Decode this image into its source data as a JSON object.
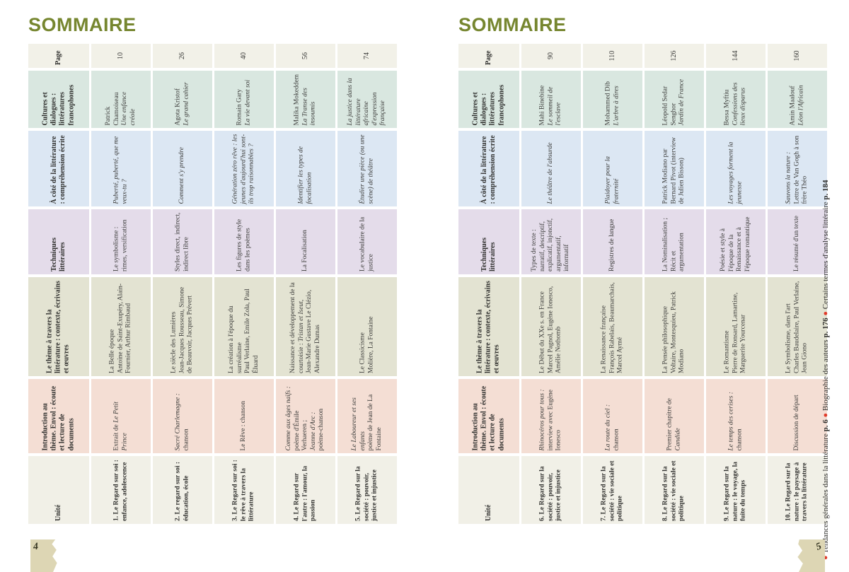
{
  "colors": {
    "accent_title": "#76862f",
    "row_page": "#f2f1e8",
    "row_cultures": "#d9e7e0",
    "row_a_cote": "#dce7f3",
    "row_techniques": "#e4dcea",
    "row_theme": "#e3e3d2",
    "row_introduction": "#f4ded4",
    "row_unite": "#f1f0e7",
    "tab": "#ddd6b4",
    "bullet": "#e03a2a"
  },
  "headers": {
    "page": "Page",
    "cultures": "Cultures et dialogues : littératures francophones",
    "a_cote": "À côté de la littérature : compréhension écrite",
    "techniques": "Techniques littéraires",
    "theme": "Le thème à travers la littérature : contexte, écrivains et œuvres",
    "introduction": "Introduction au thème. Envol : écoute et lecture de documents",
    "unite": "Unité"
  },
  "pages": [
    {
      "title": "SOMMAIRE",
      "page_number": "4",
      "units": [
        {
          "number": "1",
          "page": "10",
          "cultures": [
            {
              "t": "Patrick Chamoiseau\n"
            },
            {
              "t": "Une enfance créole",
              "i": true
            }
          ],
          "a_cote": [
            {
              "t": "Puberté, puberté, que me veux-tu ?",
              "i": true
            }
          ],
          "techniques": [
            {
              "t": "Le symbolisme : rimes, versification"
            }
          ],
          "theme": [
            {
              "t": "La Belle époque\nAntoine de Saint-Exupéry, Alain-Fournier, Arthur Rimbaud"
            }
          ],
          "introduction": [
            {
              "t": "Extrait de "
            },
            {
              "t": "Le Petit Prince",
              "i": true
            }
          ],
          "unite": "1. Le Regard sur soi : enfance, adolescence"
        },
        {
          "number": "2",
          "page": "26",
          "cultures": [
            {
              "t": "Agota Kristof\n"
            },
            {
              "t": "Le grand cahier",
              "i": true
            }
          ],
          "a_cote": [
            {
              "t": "Comment s'y prendre",
              "i": true
            }
          ],
          "techniques": [
            {
              "t": "Styles direct, indirect, indirect libre"
            }
          ],
          "theme": [
            {
              "t": "Le siècle des Lumières\nJean-Jacques Rousseau, Simone de Beauvoir, Jacques Prévert"
            }
          ],
          "introduction": [
            {
              "t": "Sacré Charlemagne :",
              "i": true
            },
            {
              "t": "\nchanson"
            }
          ],
          "unite": "2. Le regard sur soi : éducation, école"
        },
        {
          "number": "3",
          "page": "40",
          "cultures": [
            {
              "t": "Romain Gary\n"
            },
            {
              "t": "La vie devant soi",
              "i": true
            }
          ],
          "a_cote": [
            {
              "t": "Génération zéro rêve : les jeunes d'aujourd'hui sont-ils trop raisonnables ?",
              "i": true
            }
          ],
          "techniques": [
            {
              "t": "Les figures de style dans les poèmes"
            }
          ],
          "theme": [
            {
              "t": "La création à l'époque du surréalisme\nPaul Verlaine, Emile Zola, Paul Éluard"
            }
          ],
          "introduction": [
            {
              "t": "Le Rêve : chanson"
            }
          ],
          "unite": "3. Le Regard sur soi : le rêve à travers la littérature"
        },
        {
          "number": "4",
          "page": "56",
          "cultures": [
            {
              "t": "Malika Mokeddem\n"
            },
            {
              "t": "La Transe des insoumis",
              "i": true
            }
          ],
          "a_cote": [
            {
              "t": "Identifier les types de focalisation",
              "i": true
            }
          ],
          "techniques": [
            {
              "t": "La Focalisation"
            }
          ],
          "theme": [
            {
              "t": "Naissance et développement de la courtoisie : "
            },
            {
              "t": "Tristan et Iseut",
              "i": true
            },
            {
              "t": ",\nJean-Marie Gustave Le Clézio, Alexandre Dumas"
            }
          ],
          "introduction": [
            {
              "t": "Comme aux âges naïfs :",
              "i": true
            },
            {
              "t": "\npoème d'Émile Verhaeren ;\n"
            },
            {
              "t": "Jeanne d'Arc :",
              "i": true
            },
            {
              "t": "\npoème-chanson"
            }
          ],
          "unite": "4. Le Regard sur l'autre : l'amour, la passion"
        },
        {
          "number": "5",
          "page": "74",
          "cultures": [
            {
              "t": "La justice dans la littérature africaine d'expression française",
              "i": true
            }
          ],
          "a_cote": [
            {
              "t": "Étudier une pièce (ou une scène) de théâtre",
              "i": true
            }
          ],
          "techniques": [
            {
              "t": "Le vocabulaire de la justice"
            }
          ],
          "theme": [
            {
              "t": "Le Classicisme\nMolière, La Fontaine"
            }
          ],
          "introduction": [
            {
              "t": "Le Laboureur et ses enfants",
              "i": true
            },
            {
              "t": "\npoème de Jean de La Fontaine"
            }
          ],
          "unite": "5. Le Regard sur la société : pouvoir, justice et injustice"
        }
      ]
    },
    {
      "title": "SOMMAIRE",
      "page_number": "5",
      "footnote": [
        {
          "t": "● ",
          "red": true
        },
        {
          "t": "Tendances générales dans la littérature "
        },
        {
          "t": "p. 6",
          "b": true
        },
        {
          "t": " "
        },
        {
          "t": "● ",
          "red": true
        },
        {
          "t": "Biographie des auteurs "
        },
        {
          "t": "p. 176",
          "b": true
        },
        {
          "t": " "
        },
        {
          "t": "● ",
          "red": true
        },
        {
          "t": "Certains termes d'analyse littéraire "
        },
        {
          "t": "p. 184",
          "b": true
        }
      ],
      "units": [
        {
          "number": "6",
          "page": "90",
          "cultures": [
            {
              "t": "Mahi Binebine\n"
            },
            {
              "t": "Le sommeil de l'esclave",
              "i": true
            }
          ],
          "a_cote": [
            {
              "t": "Le théâtre de l'absurde",
              "i": true
            }
          ],
          "techniques": [
            {
              "t": "Types de texte : narratif, descriptif, explicatif, injonctif, argumentatif, informatif"
            }
          ],
          "theme": [
            {
              "t": "Le Début du XXe s. en France\nMarcel Pagnol, Eugène Ionesco, Amélie Nothomb"
            }
          ],
          "introduction": [
            {
              "t": "Rhinocéros pour tous :",
              "i": true
            },
            {
              "t": "\ninterview avec Eugène Ionesco"
            }
          ],
          "unite": "6. Le Regard sur la société : pouvoir, justice et injustice"
        },
        {
          "number": "7",
          "page": "110",
          "cultures": [
            {
              "t": "Mohammed Dib\n"
            },
            {
              "t": "L'arbre à dires",
              "i": true
            }
          ],
          "a_cote": [
            {
              "t": "Plaidoyer pour la fraternité",
              "i": true
            }
          ],
          "techniques": [
            {
              "t": "Registres de langue"
            }
          ],
          "theme": [
            {
              "t": "La Renaissance française\nFrançois Rabelais, Beaumarchais, Marcel Aymé"
            }
          ],
          "introduction": [
            {
              "t": "La route du ciel :",
              "i": true
            },
            {
              "t": "\nchanson"
            }
          ],
          "unite": "7. Le Regard sur la société : vie sociale et politique"
        },
        {
          "number": "8",
          "page": "126",
          "cultures": [
            {
              "t": "Léopold Sedar Senghor\n"
            },
            {
              "t": "Jardin de France",
              "i": true
            }
          ],
          "a_cote": [
            {
              "t": "Patrick Modiano par Bernard Pivot (interview de Julien Bisson)"
            }
          ],
          "techniques": [
            {
              "t": "La Nominalisation ; Récit et argumentation"
            }
          ],
          "theme": [
            {
              "t": "La Pensée philosophique\nVoltaire, Montesquieu, Patrick Modiano"
            }
          ],
          "introduction": [
            {
              "t": "Premier chapitre de\n"
            },
            {
              "t": "Candide",
              "i": true
            }
          ],
          "unite": "8. Le Regard sur la société : vie sociale et politique"
        },
        {
          "number": "9",
          "page": "144",
          "cultures": [
            {
              "t": "Bessa Myftiu\n"
            },
            {
              "t": "Confessions des lieux disparus",
              "i": true
            }
          ],
          "a_cote": [
            {
              "t": "Les voyages forment la jeunesse",
              "i": true
            }
          ],
          "techniques": [
            {
              "t": "Poésie et style à l'époque de la Renaissance et à l'époque romantique"
            }
          ],
          "theme": [
            {
              "t": "Le Romantisme\nPierre de Ronsard, Lamartine, Marguerite Yourcenar"
            }
          ],
          "introduction": [
            {
              "t": "Le temps des cerises :",
              "i": true
            },
            {
              "t": "\nchanson"
            }
          ],
          "unite": "9. Le Regard sur la nature : le voyage, la fuite du temps"
        },
        {
          "number": "10",
          "page": "160",
          "cultures": [
            {
              "t": "Amin Maalouf\n"
            },
            {
              "t": "Léon l'Africain",
              "i": true
            }
          ],
          "a_cote": [
            {
              "t": "Sauvons la nature :",
              "i": true
            },
            {
              "t": "\nLettre de Van Gogh à son frère Théo"
            }
          ],
          "techniques": [
            {
              "t": "Le résumé d'un texte"
            }
          ],
          "theme": [
            {
              "t": "Le Symbolisme, dans l'art\nCharles Baudelaire, Paul Verlaine, Jean Giono"
            }
          ],
          "introduction": [
            {
              "t": "Discussion de départ"
            }
          ],
          "unite": "10. Le Regard sur la nature : le paysage à travers la littérature"
        }
      ]
    }
  ]
}
